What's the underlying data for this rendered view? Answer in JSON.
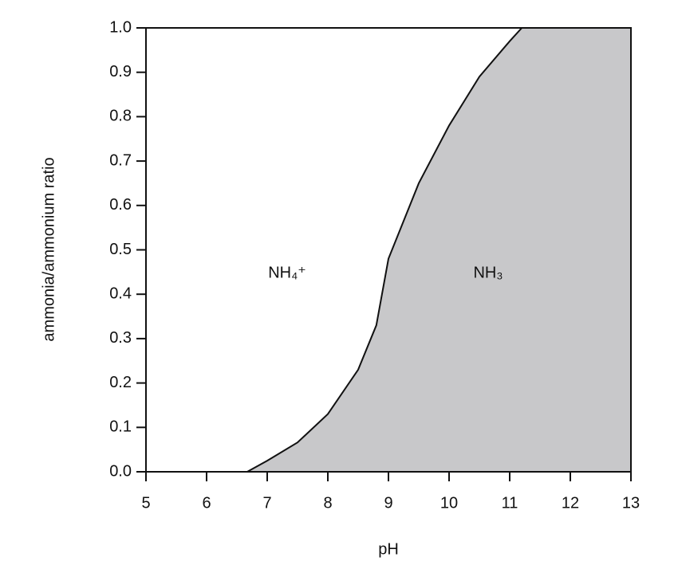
{
  "chart_data": {
    "type": "area",
    "xlabel": "pH",
    "ylabel": "ammonia/ammonium ratio",
    "annotations": [
      "NH₄⁺",
      "NH₃"
    ],
    "x": [
      6.67,
      7,
      7.5,
      8,
      8.5,
      8.8,
      9,
      9.5,
      10,
      10.5,
      11,
      11.2,
      13
    ],
    "values": [
      0,
      0.025,
      0.066,
      0.13,
      0.23,
      0.33,
      0.48,
      0.65,
      0.78,
      0.89,
      0.97,
      1.0,
      1.0
    ],
    "color": "#c8c8ca",
    "line_color": "#111111",
    "xlim": [
      5,
      13
    ],
    "xticks": [
      5,
      6,
      7,
      8,
      9,
      10,
      11,
      12,
      13
    ],
    "ylim": [
      0,
      1
    ],
    "yticks": [
      {
        "value": 0,
        "label": "0.0"
      },
      0.1,
      0.2,
      0.3,
      0.4,
      0.5,
      0.6,
      0.7,
      0.8,
      0.9,
      {
        "value": 1,
        "label": "1.0"
      }
    ]
  }
}
